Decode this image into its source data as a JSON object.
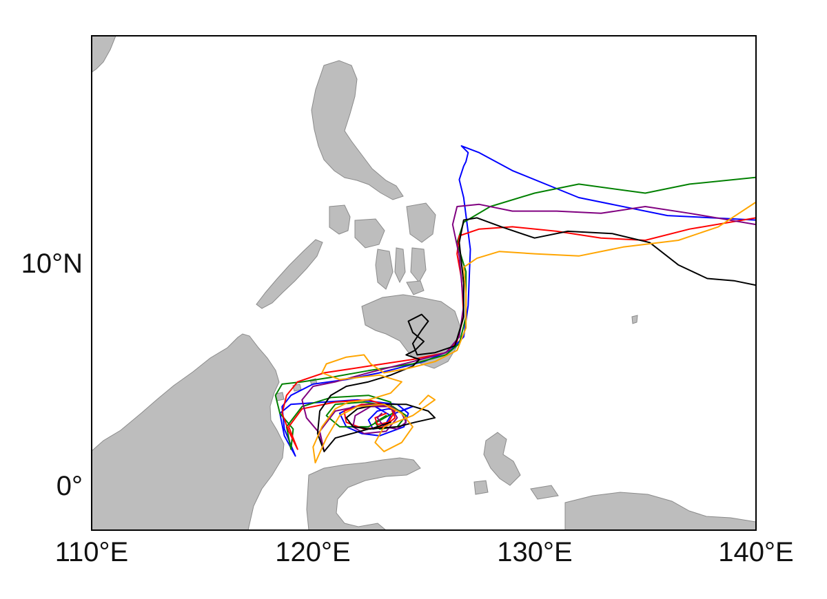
{
  "map": {
    "lon_range": [
      110,
      140
    ],
    "lat_range": [
      -2,
      20
    ],
    "land_color": "#bdbdbd",
    "grid": false,
    "x_ticks": [
      {
        "lon": 110,
        "label": "110°E"
      },
      {
        "lon": 120,
        "label": "120°E"
      },
      {
        "lon": 130,
        "label": "130°E"
      },
      {
        "lon": 140,
        "label": "140°E"
      }
    ],
    "y_ticks": [
      {
        "lat": 10,
        "label": "10°N"
      },
      {
        "lat": 0,
        "label": "0°"
      }
    ]
  },
  "chart_data": {
    "type": "line",
    "title": "",
    "xlabel": "",
    "ylabel": "",
    "xlim": [
      110,
      140
    ],
    "ylim": [
      -2,
      20
    ],
    "series": [
      {
        "color": "#0000ff",
        "x": [
          140,
          136,
          132,
          129,
          127.5,
          126.7,
          127,
          126.9,
          126.8,
          126.6,
          126.8,
          127.1,
          127,
          126.8,
          126.2,
          125,
          123,
          121.5,
          120,
          119,
          118.6,
          118.7,
          119.2,
          118.7,
          118.5,
          119,
          120.5,
          122,
          123.8,
          124.3,
          124.1,
          123,
          122.2,
          121.5,
          121.2,
          121.8,
          122.8,
          123.5,
          123.2,
          122.7,
          122.5,
          122.9,
          123.4,
          124,
          124.5,
          124.2,
          123.7
        ],
        "y": [
          11.8,
          12,
          12.8,
          14,
          14.8,
          15.1,
          14.8,
          14.4,
          14.2,
          13.6,
          12.8,
          10.5,
          8,
          6.6,
          6,
          5.5,
          5,
          4.7,
          4.5,
          4,
          3.5,
          2.5,
          1.3,
          2.2,
          3.2,
          3.6,
          3.7,
          3.8,
          3.6,
          3.2,
          2.6,
          2.2,
          2.3,
          2.6,
          3.2,
          3.5,
          3.5,
          3.1,
          2.6,
          2.5,
          2.9,
          3.3,
          3.4,
          3.3,
          3.5,
          3.4,
          3.2
        ]
      },
      {
        "color": "#008000",
        "x": [
          140,
          137,
          135,
          132,
          130,
          128,
          126.8,
          126.5,
          126.9,
          126.9,
          126.6,
          126,
          124.5,
          122.5,
          120.8,
          119.5,
          118.6,
          118.3,
          118.5,
          119.1,
          119,
          118.8,
          119.5,
          120.8,
          122.5,
          123.5,
          123.6,
          122.5,
          121.2,
          120.6,
          121,
          122.3,
          123.6,
          124.2,
          123.8,
          123,
          122.8,
          123.3
        ],
        "y": [
          13.7,
          13.4,
          13,
          13.4,
          13,
          12.4,
          11.7,
          10.8,
          9.5,
          7.5,
          6.3,
          5.8,
          5.4,
          5.1,
          4.8,
          4.6,
          4.5,
          4,
          3.2,
          2.5,
          1.6,
          2.6,
          3.5,
          3.9,
          4,
          3.7,
          3.2,
          2.6,
          2.6,
          3.1,
          3.6,
          3.7,
          3.5,
          3.1,
          2.6,
          2.5,
          2.8,
          3.1
        ]
      },
      {
        "color": "#ff0000",
        "x": [
          140,
          137,
          135,
          133,
          131,
          129,
          127.5,
          126.6,
          126.5,
          126.7,
          126.8,
          126.5,
          126,
          124.5,
          122.5,
          120.5,
          119.3,
          118.8,
          118.6,
          118.9,
          119.3,
          118.9,
          119.5,
          121,
          122.5,
          123.5,
          123.7,
          123.2,
          122.3,
          121.5,
          121.4,
          122.2,
          123.2,
          123.7,
          123.4,
          122.9,
          122.8,
          123.3
        ],
        "y": [
          11.9,
          11.4,
          10.9,
          11,
          11.3,
          11.5,
          11.4,
          11.1,
          10.3,
          9.2,
          7.5,
          6.4,
          5.9,
          5.6,
          5.3,
          5,
          4.6,
          4,
          3.2,
          2.4,
          1.6,
          2.6,
          3.4,
          3.7,
          3.8,
          3.5,
          3,
          2.6,
          2.5,
          2.8,
          3.3,
          3.6,
          3.6,
          3.3,
          2.8,
          2.7,
          3,
          3.2
        ]
      },
      {
        "color": "#800080",
        "x": [
          140,
          137,
          135,
          133,
          131,
          129,
          127.5,
          126.5,
          126.3,
          126.6,
          126.8,
          126.6,
          126,
          124.5,
          122.5,
          121,
          120,
          119.5,
          119.7,
          120.3,
          120.5,
          120.3,
          121,
          122.5,
          123.5,
          123.8,
          123.3,
          122.3,
          121.8,
          121.9,
          122.6,
          123.5,
          124,
          124.2,
          123.8,
          123.2,
          122.9,
          123.1
        ],
        "y": [
          11.6,
          12.1,
          12.4,
          12.1,
          12.2,
          12.2,
          12.5,
          12.4,
          11.6,
          10.2,
          8,
          6.6,
          5.9,
          5.5,
          5,
          4.6,
          4.4,
          3.8,
          3,
          2.3,
          1.5,
          2.4,
          3.3,
          3.6,
          3.5,
          3,
          2.4,
          2.3,
          2.6,
          3.1,
          3.5,
          3.5,
          3.2,
          2.8,
          2.5,
          2.6,
          3,
          3.2
        ]
      },
      {
        "color": "#000000",
        "x": [
          140,
          139,
          137.8,
          136.5,
          135.2,
          133.5,
          131.5,
          130,
          128.5,
          127.4,
          126.8,
          126.6,
          126.8,
          126.8,
          126.4,
          125.5,
          124.7,
          124.5,
          124.9,
          125.2,
          124.9,
          124.3,
          124.5,
          125,
          124.6,
          124.2,
          124.8,
          124.5,
          123.5,
          122.5,
          121.5,
          120.8,
          120.3,
          120.2,
          120.5,
          121,
          122.5,
          123.8,
          124.6,
          125.5,
          125.2,
          124.2,
          123,
          122,
          121.5,
          121.8,
          122.6,
          123.5
        ],
        "y": [
          8.9,
          9.1,
          9.2,
          9.8,
          10.8,
          11.2,
          11.3,
          11,
          11.5,
          11.9,
          11.8,
          10.8,
          9,
          7.5,
          6.2,
          5.9,
          5.8,
          6.3,
          6.9,
          7.3,
          7.6,
          7.3,
          6.8,
          6.4,
          6,
          5.8,
          5.6,
          5.3,
          4.9,
          4.6,
          4.4,
          4,
          3.3,
          2.3,
          1.5,
          2.1,
          2.5,
          2.6,
          2.8,
          3,
          3.3,
          3.6,
          3.6,
          3.4,
          3,
          2.6,
          2.5,
          2.8
        ]
      },
      {
        "color": "#ffa500",
        "x": [
          140,
          138.3,
          136.5,
          134,
          132,
          130,
          128.4,
          127.4,
          126.8,
          126.9,
          126.9,
          126.5,
          125.5,
          124.3,
          123.2,
          122.6,
          122.3,
          121.5,
          120.6,
          120.4,
          121.2,
          123,
          124,
          123.5,
          122.5,
          121.6,
          121,
          120.4,
          120,
          120.1,
          120.6,
          121.2,
          122,
          123.2,
          124,
          124.5,
          124,
          123.2,
          122.8,
          123.2,
          124.5,
          125.5,
          125.2,
          124.8
        ],
        "y": [
          12.6,
          11.5,
          10.9,
          10.6,
          10.2,
          10.3,
          10.4,
          10.1,
          9.7,
          8.5,
          7,
          6,
          5.5,
          5.2,
          5,
          5.4,
          5.8,
          5.7,
          5.4,
          5,
          4.7,
          4.9,
          4.6,
          4.1,
          3.8,
          3.7,
          3.4,
          2.6,
          1.7,
          1,
          2.1,
          3.1,
          3.5,
          3.6,
          3.2,
          2.6,
          1.9,
          1.5,
          1.9,
          2.6,
          3.1,
          3.8,
          4,
          3.6
        ]
      }
    ]
  }
}
